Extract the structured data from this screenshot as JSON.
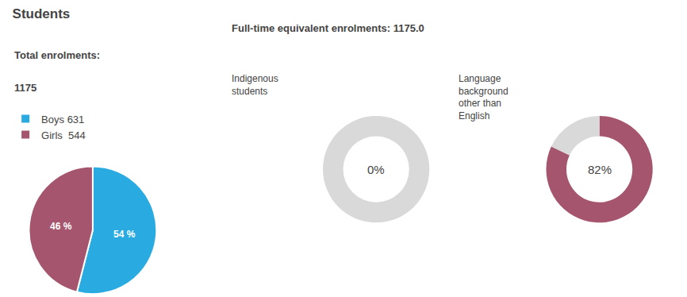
{
  "chart_data": [
    {
      "type": "pie",
      "title": "Students",
      "annotations": [
        "Total enrolments:",
        "1175",
        "Full-time equivalent enrolments: 1175.0"
      ],
      "categories": [
        "Boys 631",
        "Girls  544"
      ],
      "values": [
        54,
        46
      ],
      "value_labels": [
        "54 %",
        "46 %"
      ],
      "colors": [
        "#29abe2",
        "#a5566e"
      ],
      "data_labels": true,
      "legend": "left"
    },
    {
      "type": "donut",
      "title": "Indigenous\nstudents",
      "values": [
        0
      ],
      "value_labels": [
        "0%"
      ],
      "colors": [
        "#a5566e",
        "#d9d9d9"
      ]
    },
    {
      "type": "donut",
      "title": "Language\nbackground\nother than\nEnglish",
      "values": [
        82
      ],
      "value_labels": [
        "82%"
      ],
      "colors": [
        "#a5566e",
        "#d9d9d9"
      ]
    }
  ]
}
